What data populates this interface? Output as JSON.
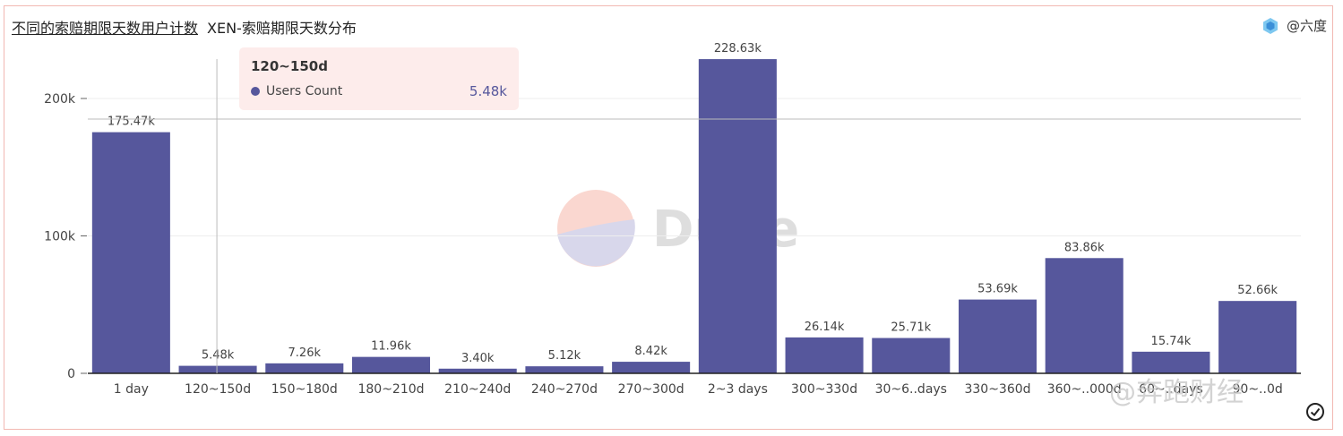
{
  "header": {
    "title": "不同的索赔期限天数用户计数",
    "subtitle": "XEN-索赔期限天数分布",
    "author": "@六度"
  },
  "tooltip": {
    "title": "120~150d",
    "series_name": "Users Count",
    "value": "5.48k"
  },
  "watermark": {
    "brand": "Dune",
    "source": "@奔跑财经"
  },
  "colors": {
    "bar": "#56579c",
    "tooltip_bg": "#fdeceb",
    "border": "#f2b8b2"
  },
  "chart_data": {
    "type": "bar",
    "categories": [
      "1 day",
      "120~150d",
      "150~180d",
      "180~210d",
      "210~240d",
      "240~270d",
      "270~300d",
      "2~3 days",
      "300~330d",
      "30~6..days",
      "330~360d",
      "360~..000d",
      "60~..days",
      "90~..0d"
    ],
    "series": [
      {
        "name": "Users Count",
        "values": [
          175.47,
          5.48,
          7.26,
          11.96,
          3.4,
          5.12,
          8.42,
          228.63,
          26.14,
          25.71,
          53.69,
          83.86,
          15.74,
          52.66
        ],
        "labels": [
          "175.47k",
          "5.48k",
          "7.26k",
          "11.96k",
          "3.40k",
          "5.12k",
          "8.42k",
          "228.63k",
          "26.14k",
          "25.71k",
          "53.69k",
          "83.86k",
          "15.74k",
          "52.66k"
        ]
      }
    ],
    "ylim": [
      0,
      240
    ],
    "yticks": [
      0,
      100,
      200
    ],
    "ytick_labels": [
      "0",
      "100k",
      "200k"
    ],
    "grid": true,
    "highlighted_category": "120~150d",
    "crosshair_value": 185
  }
}
